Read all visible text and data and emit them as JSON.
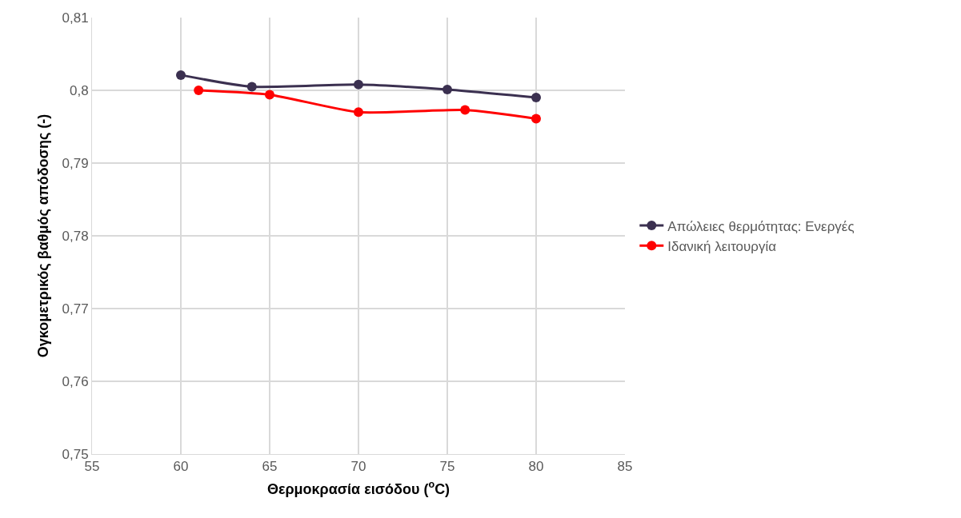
{
  "chart_data": {
    "type": "line",
    "xlabel": "Θερμοκρασία εισόδου ($^{o}$C)",
    "ylabel": "Ογκομετρικός βαθμός απόδοσης (-)",
    "series": [
      {
        "name": "Απώλειες θερμότητας: Ενεργές",
        "color": "#3b3050",
        "x": [
          60,
          64,
          70,
          75,
          80
        ],
        "values": [
          0.8021,
          0.8005,
          0.8008,
          0.8001,
          0.799
        ]
      },
      {
        "name": "Ιδανική λειτουργία",
        "color": "#ff0000",
        "x": [
          61,
          65,
          70,
          76,
          80
        ],
        "values": [
          0.8,
          0.7994,
          0.797,
          0.7973,
          0.7961
        ]
      }
    ],
    "xlim": [
      55,
      85
    ],
    "xticks": [
      55,
      60,
      65,
      70,
      75,
      80,
      85
    ],
    "ylim": [
      0.75,
      0.81
    ],
    "yticks": [
      {
        "value": 0.75,
        "label": "0,75"
      },
      {
        "value": 0.76,
        "label": "0,76"
      },
      {
        "value": 0.77,
        "label": "0,77"
      },
      {
        "value": 0.78,
        "label": "0,78"
      },
      {
        "value": 0.79,
        "label": "0,79"
      },
      {
        "value": 0.8,
        "label": "0,8"
      },
      {
        "value": 0.81,
        "label": "0,81"
      }
    ],
    "grid": true,
    "legend": "right",
    "marker": "circle",
    "line_style": "solid"
  }
}
